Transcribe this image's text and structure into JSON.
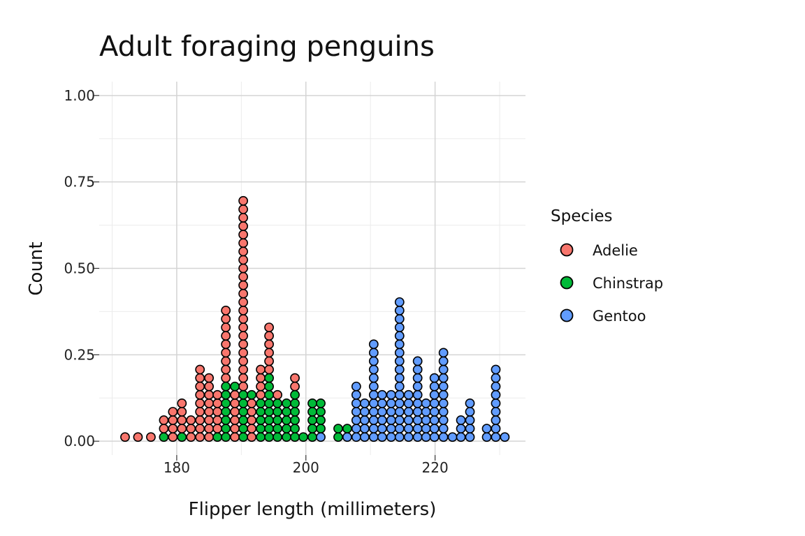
{
  "chart_data": {
    "type": "dotplot",
    "title": "Adult foraging penguins",
    "xlabel": "Flipper length (millimeters)",
    "ylabel": "Count",
    "xlim": [
      168,
      234
    ],
    "ylim": [
      -0.04,
      1.04
    ],
    "x_ticks": [
      "180",
      "200",
      "220"
    ],
    "x_tick_values": [
      180,
      200,
      220
    ],
    "y_ticks": [
      "0.00",
      "0.25",
      "0.50",
      "0.75",
      "1.00"
    ],
    "y_tick_values": [
      0,
      0.25,
      0.5,
      0.75,
      1.0
    ],
    "grid": true,
    "legend": {
      "title": "Species",
      "position": "right"
    },
    "dot_step": 0.0244,
    "series": [
      {
        "name": "Adelie",
        "color": "#F8766D",
        "stacks": [
          {
            "x": 172,
            "base": 0,
            "n": 1
          },
          {
            "x": 174,
            "base": 0,
            "n": 1
          },
          {
            "x": 176,
            "base": 0,
            "n": 1
          },
          {
            "x": 178,
            "base": 1,
            "n": 2
          },
          {
            "x": 179.4,
            "base": 0,
            "n": 4
          },
          {
            "x": 180.8,
            "base": 1,
            "n": 4
          },
          {
            "x": 182.2,
            "base": 0,
            "n": 3
          },
          {
            "x": 183.6,
            "base": 0,
            "n": 9
          },
          {
            "x": 185,
            "base": 0,
            "n": 8
          },
          {
            "x": 186.3,
            "base": 1,
            "n": 5
          },
          {
            "x": 187.6,
            "base": 7,
            "n": 9
          },
          {
            "x": 189,
            "base": 0,
            "n": 6
          },
          {
            "x": 190.3,
            "base": 6,
            "n": 23
          },
          {
            "x": 191.6,
            "base": 0,
            "n": 5
          },
          {
            "x": 193,
            "base": 5,
            "n": 4
          },
          {
            "x": 194.3,
            "base": 8,
            "n": 6
          },
          {
            "x": 195.6,
            "base": 5,
            "n": 1
          },
          {
            "x": 198.3,
            "base": 6,
            "n": 2
          }
        ]
      },
      {
        "name": "Chinstrap",
        "color": "#00BA38",
        "stacks": [
          {
            "x": 178,
            "base": 0,
            "n": 1
          },
          {
            "x": 180.8,
            "base": 0,
            "n": 1
          },
          {
            "x": 186.3,
            "base": 0,
            "n": 1
          },
          {
            "x": 187.6,
            "base": 0,
            "n": 7
          },
          {
            "x": 189,
            "base": 6,
            "n": 1
          },
          {
            "x": 190.3,
            "base": 0,
            "n": 6
          },
          {
            "x": 191.6,
            "base": 5,
            "n": 1
          },
          {
            "x": 193,
            "base": 0,
            "n": 5
          },
          {
            "x": 194.3,
            "base": 0,
            "n": 8
          },
          {
            "x": 195.6,
            "base": 0,
            "n": 5
          },
          {
            "x": 197,
            "base": 0,
            "n": 5
          },
          {
            "x": 198.3,
            "base": 0,
            "n": 6
          },
          {
            "x": 199.6,
            "base": 0,
            "n": 1
          },
          {
            "x": 201,
            "base": 0,
            "n": 5
          },
          {
            "x": 202.3,
            "base": 1,
            "n": 4
          },
          {
            "x": 205,
            "base": 0,
            "n": 2
          },
          {
            "x": 206.4,
            "base": 1,
            "n": 1
          }
        ]
      },
      {
        "name": "Gentoo",
        "color": "#619CFF",
        "stacks": [
          {
            "x": 202.3,
            "base": 0,
            "n": 1
          },
          {
            "x": 206.4,
            "base": 0,
            "n": 1
          },
          {
            "x": 207.8,
            "base": 0,
            "n": 7
          },
          {
            "x": 209.1,
            "base": 0,
            "n": 5
          },
          {
            "x": 210.5,
            "base": 0,
            "n": 12
          },
          {
            "x": 211.8,
            "base": 0,
            "n": 6
          },
          {
            "x": 213.2,
            "base": 0,
            "n": 6
          },
          {
            "x": 214.5,
            "base": 0,
            "n": 17
          },
          {
            "x": 215.9,
            "base": 0,
            "n": 6
          },
          {
            "x": 217.3,
            "base": 0,
            "n": 10
          },
          {
            "x": 218.6,
            "base": 0,
            "n": 5
          },
          {
            "x": 219.9,
            "base": 0,
            "n": 8
          },
          {
            "x": 221.3,
            "base": 0,
            "n": 11
          },
          {
            "x": 222.7,
            "base": 0,
            "n": 1
          },
          {
            "x": 224,
            "base": 0,
            "n": 3
          },
          {
            "x": 225.4,
            "base": 0,
            "n": 5
          },
          {
            "x": 228,
            "base": 0,
            "n": 2
          },
          {
            "x": 229.4,
            "base": 0,
            "n": 9
          },
          {
            "x": 230.8,
            "base": 0,
            "n": 1
          }
        ]
      }
    ]
  }
}
